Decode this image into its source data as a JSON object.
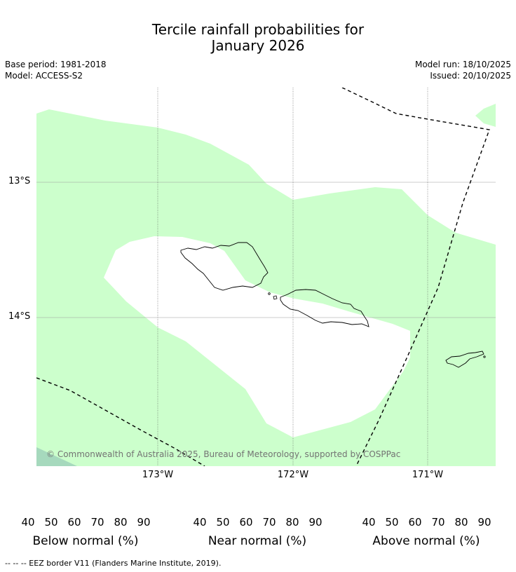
{
  "title_line1": "Tercile rainfall probabilities for",
  "title_line2": "January 2026",
  "base_period": "Base period: 1981-2018",
  "model": "Model: ACCESS-S2",
  "model_run": "Model run: 18/10/2025",
  "issued": "Issued: 20/10/2025",
  "lat_labels": [
    "13°S",
    "14°S"
  ],
  "lon_labels": [
    "173°W",
    "172°W",
    "171°W"
  ],
  "copyright": "© Commonwealth of Australia 2025, Bureau of Meteorology, supported by COSPPac",
  "footer": "--  --  -- EEZ border V11 (Flanders Marine Institute, 2019).",
  "colorbars": [
    {
      "label": "Below normal (%)",
      "ticks": [
        "40",
        "50",
        "60",
        "70",
        "80",
        "90"
      ],
      "colors": [
        "#ffeda0",
        "#fecc5c",
        "#e08f44",
        "#cd5d2e",
        "#b14a26",
        "#8a2e1c"
      ]
    },
    {
      "label": "Near normal (%)",
      "ticks": [
        "40",
        "50",
        "60",
        "70",
        "80",
        "90"
      ],
      "colors": [
        "#e8e8e8",
        "#d9d9d9",
        "#c8c8c8",
        "#b4b4b4",
        "#9e9e9e",
        "#7f7f7f"
      ]
    },
    {
      "label": "Above normal (%)",
      "ticks": [
        "40",
        "50",
        "60",
        "70",
        "80",
        "90"
      ],
      "colors": [
        "#ccffcc",
        "#a6d9bd",
        "#80b8b2",
        "#5a93a5",
        "#336a9a",
        "#16457f"
      ]
    }
  ],
  "colors": {
    "above_40": "#ccffcc",
    "above_50": "#a6d9bd",
    "coast": "#000000",
    "eez": "#000000"
  }
}
